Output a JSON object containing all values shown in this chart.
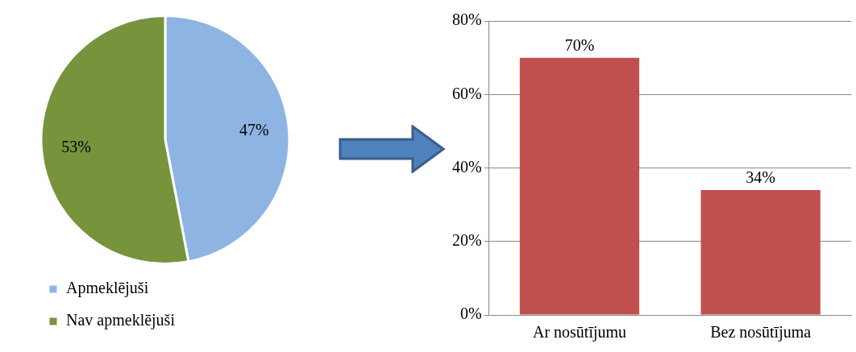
{
  "chart_data": [
    {
      "type": "pie",
      "categories": [
        "Apmeklējuši",
        "Nav apmeklējuši"
      ],
      "values": [
        47,
        53
      ],
      "colors": [
        "#8eb4e3",
        "#77933c"
      ],
      "value_labels": [
        "47%",
        "53%"
      ],
      "legend": "bottom left"
    },
    {
      "type": "bar",
      "categories": [
        "Ar nosūtījumu",
        "Bez nosūtījuma"
      ],
      "values": [
        70,
        34
      ],
      "color": "#c0504d",
      "value_labels": [
        "70%",
        "34%"
      ],
      "ylim": [
        0,
        80
      ],
      "yticks": [
        {
          "value": 0,
          "label": "0%"
        },
        {
          "value": 20,
          "label": "20%"
        },
        {
          "value": 40,
          "label": "40%"
        },
        {
          "value": 60,
          "label": "60%"
        },
        {
          "value": 80,
          "label": "80%"
        }
      ],
      "grid": "y"
    }
  ]
}
